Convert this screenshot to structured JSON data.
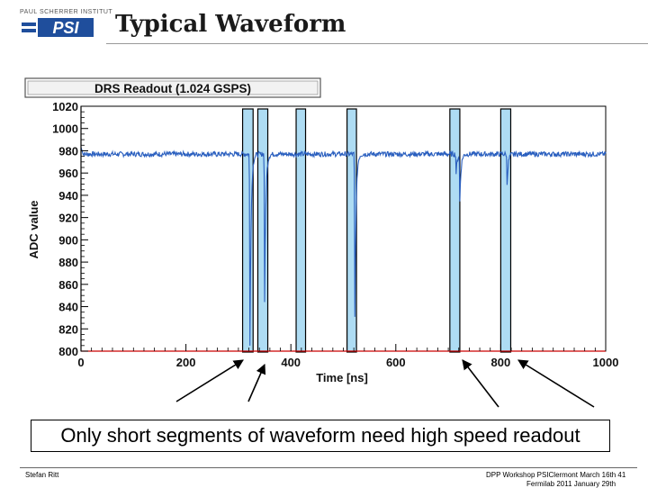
{
  "slide": {
    "logo_top_text": "PAUL SCHERRER INSTITUT",
    "logo_text": "PSI",
    "title": "Typical Waveform",
    "caption": "Only short segments of waveform need high speed readout",
    "footer_left": "Stefan Ritt",
    "footer_right": "DPP Workshop PSIClermont March 16th 41",
    "footer_right_line2": "Fermilab 2011 January 29th"
  },
  "colors": {
    "trace": "#2a5fbf",
    "highlight_fill": "#aedcf3",
    "highlight_stroke": "#000000",
    "axis_red": "#cc0000",
    "logo_blue": "#1f4e9c"
  },
  "chart_data": {
    "type": "line",
    "title": "DRS Readout (1.024 GSPS)",
    "xlabel": "Time [ns]",
    "ylabel": "ADC value",
    "xlim": [
      0,
      1000
    ],
    "ylim": [
      800,
      1020
    ],
    "xticks": [
      0,
      200,
      400,
      600,
      800,
      1000
    ],
    "yticks": [
      800,
      820,
      840,
      860,
      880,
      900,
      920,
      940,
      960,
      980,
      1000,
      1020
    ],
    "baseline": 977,
    "pulses": [
      {
        "t": 322,
        "min": 805
      },
      {
        "t": 350,
        "min": 845
      },
      {
        "t": 522,
        "min": 830
      },
      {
        "t": 715,
        "min": 960
      },
      {
        "t": 722,
        "min": 935
      },
      {
        "t": 812,
        "min": 950
      }
    ],
    "highlight_windows": [
      {
        "t_start": 308,
        "t_end": 328
      },
      {
        "t_start": 337,
        "t_end": 356
      },
      {
        "t_start": 410,
        "t_end": 428
      },
      {
        "t_start": 507,
        "t_end": 525
      },
      {
        "t_start": 703,
        "t_end": 722
      },
      {
        "t_start": 800,
        "t_end": 819
      }
    ],
    "legend": "none",
    "grid": false
  }
}
